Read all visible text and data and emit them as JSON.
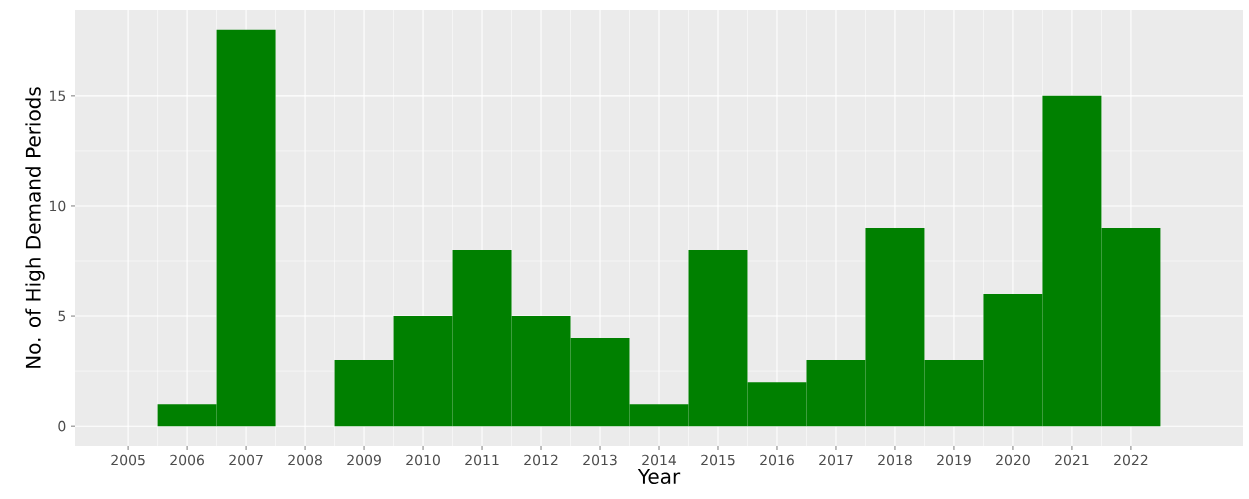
{
  "chart_data": {
    "type": "bar",
    "xlabel": "Year",
    "ylabel": "No. of High Demand Periods",
    "x": [
      2005,
      2006,
      2007,
      2008,
      2009,
      2010,
      2011,
      2012,
      2013,
      2014,
      2015,
      2016,
      2017,
      2018,
      2019,
      2020,
      2021,
      2022
    ],
    "values": [
      0,
      1,
      18,
      0,
      3,
      5,
      8,
      5,
      4,
      1,
      8,
      2,
      3,
      9,
      3,
      6,
      15,
      9
    ],
    "color": "#008000",
    "xlim": [
      2004.1,
      2023.9
    ],
    "ylim": [
      -0.9,
      18.9
    ],
    "xticks": [
      2005,
      2006,
      2007,
      2008,
      2009,
      2010,
      2011,
      2012,
      2013,
      2014,
      2015,
      2016,
      2017,
      2018,
      2019,
      2020,
      2021,
      2022
    ],
    "yticks": [
      0,
      5,
      10,
      15
    ],
    "grid": true
  }
}
